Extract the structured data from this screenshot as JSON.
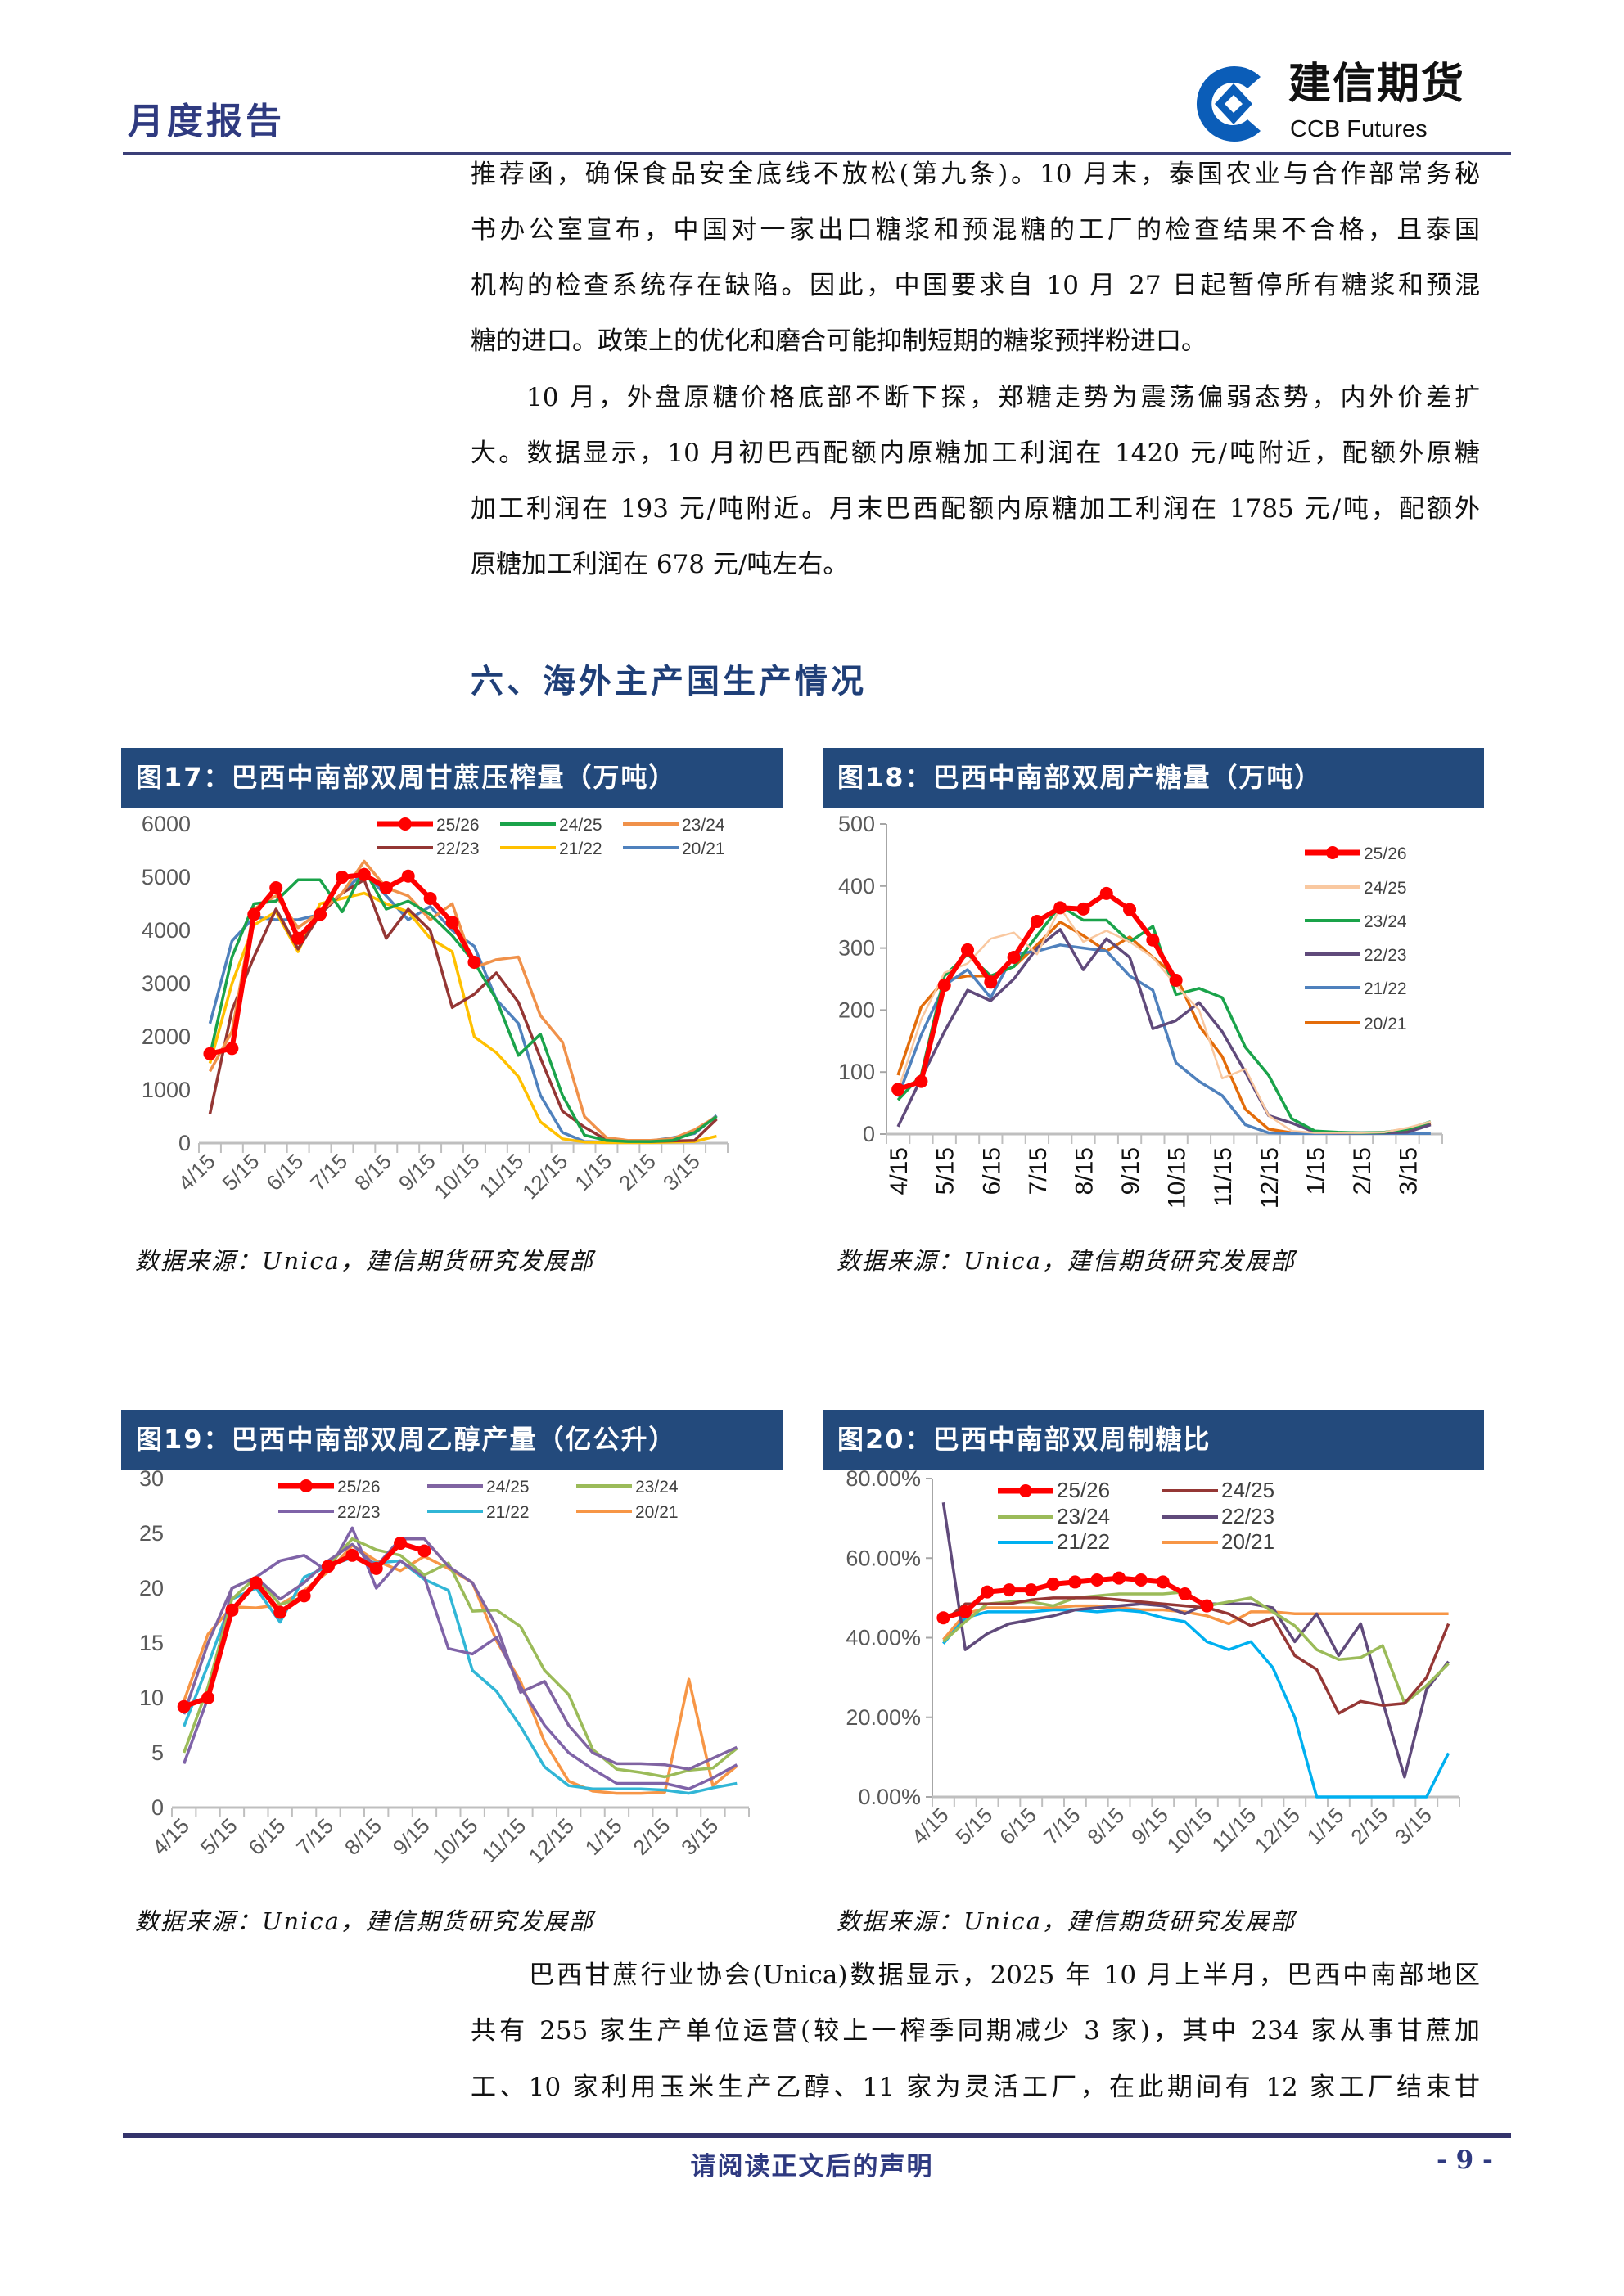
{
  "header": {
    "report_type": "月度报告",
    "logo_cn": "建信期货",
    "logo_en": "CCB Futures",
    "brand_color": "#0b5db8"
  },
  "body_top": {
    "lines": [
      "推荐函，确保食品安全底线不放松(第九条)。10 月末，泰国农业与合作部常务秘",
      "书办公室宣布，中国对一家出口糖浆和预混糖的工厂的检查结果不合格，且泰国",
      "机构的检查系统存在缺陷。因此，中国要求自 10 月 27 日起暂停所有糖浆和预混",
      "糖的进口。政策上的优化和磨合可能抑制短期的糖浆预拌粉进口。",
      "10 月，外盘原糖价格底部不断下探，郑糖走势为震荡偏弱态势，内外价差扩",
      "大。数据显示，10 月初巴西配额内原糖加工利润在 1420 元/吨附近，配额外原糖",
      "加工利润在 193 元/吨附近。月末巴西配额内原糖加工利润在 1785 元/吨，配额外",
      "原糖加工利润在 678 元/吨左右。"
    ]
  },
  "section_title": "六、海外主产国生产情况",
  "source_label": "数据来源：Unica，建信期货研究发展部",
  "chart_data": [
    {
      "type": "line",
      "title": "图17：巴西中南部双周甘蔗压榨量（万吨）",
      "ylim": [
        0,
        6000
      ],
      "y_tick_labels": [
        "0",
        "1000",
        "2000",
        "3000",
        "4000",
        "5000",
        "6000"
      ],
      "x_tick_labels": [
        "4/15",
        "5/15",
        "6/15",
        "7/15",
        "8/15",
        "9/15",
        "10/15",
        "11/15",
        "12/15",
        "1/15",
        "2/15",
        "3/15"
      ],
      "legend": "top",
      "series": [
        {
          "name": "25/26",
          "color": "#ff0000",
          "markers": true,
          "values": [
            1680,
            1780,
            4300,
            4800,
            3850,
            4300,
            5000,
            5050,
            4800,
            5020,
            4600,
            4150,
            3400
          ]
        },
        {
          "name": "24/25",
          "color": "#1aa34a",
          "values": [
            1650,
            3500,
            4500,
            4550,
            4950,
            4950,
            4350,
            5150,
            4400,
            4550,
            4300,
            3900,
            3400,
            2700,
            1650,
            2050,
            900,
            150,
            50,
            30,
            30,
            50,
            200,
            500
          ]
        },
        {
          "name": "23/24",
          "color": "#f0914a",
          "values": [
            1350,
            2100,
            4400,
            4650,
            4050,
            4350,
            4700,
            5300,
            4800,
            4650,
            4200,
            4500,
            3300,
            3450,
            3500,
            2400,
            1900,
            500,
            100,
            50,
            50,
            80,
            250,
            500
          ]
        },
        {
          "name": "22/23",
          "color": "#943634",
          "values": [
            550,
            2500,
            3500,
            4400,
            3650,
            4300,
            4700,
            4950,
            3850,
            4400,
            4000,
            2550,
            2800,
            3200,
            2650,
            1600,
            600,
            300,
            60,
            40,
            30,
            40,
            50,
            450
          ]
        },
        {
          "name": "21/22",
          "color": "#ffc000",
          "values": [
            1500,
            3000,
            4100,
            4350,
            3600,
            4500,
            4600,
            4700,
            4500,
            4350,
            3850,
            3600,
            2000,
            1700,
            1250,
            400,
            80,
            20,
            10,
            10,
            10,
            20,
            30,
            130
          ]
        },
        {
          "name": "20/21",
          "color": "#4f81bd",
          "values": [
            2250,
            3800,
            4250,
            4200,
            4200,
            4300,
            4700,
            5100,
            4650,
            4200,
            4450,
            4000,
            3700,
            2700,
            2250,
            900,
            200,
            30,
            20,
            20,
            40,
            100,
            180,
            520
          ]
        }
      ]
    },
    {
      "type": "line",
      "title": "图18：巴西中南部双周产糖量（万吨）",
      "ylim": [
        0,
        500
      ],
      "y_tick_labels": [
        "0",
        "100",
        "200",
        "300",
        "400",
        "500"
      ],
      "x_tick_labels": [
        "4/15",
        "5/15",
        "6/15",
        "7/15",
        "8/15",
        "9/15",
        "10/15",
        "11/15",
        "12/15",
        "1/15",
        "2/15",
        "3/15"
      ],
      "legend": "right",
      "series": [
        {
          "name": "25/26",
          "color": "#ff0000",
          "markers": true,
          "values": [
            72,
            85,
            240,
            297,
            245,
            285,
            343,
            365,
            363,
            388,
            362,
            313,
            248
          ]
        },
        {
          "name": "24/25",
          "color": "#f9c8a0",
          "values": [
            70,
            185,
            260,
            275,
            315,
            325,
            290,
            365,
            310,
            328,
            310,
            285,
            240,
            200,
            90,
            105,
            30,
            5,
            2,
            2,
            2,
            3,
            10,
            20
          ]
        },
        {
          "name": "23/24",
          "color": "#1aa34a",
          "values": [
            55,
            95,
            255,
            290,
            255,
            270,
            320,
            368,
            345,
            345,
            310,
            335,
            225,
            235,
            220,
            140,
            95,
            25,
            5,
            3,
            2,
            3,
            8,
            20
          ]
        },
        {
          "name": "22/23",
          "color": "#604a7b",
          "values": [
            12,
            90,
            165,
            232,
            215,
            250,
            300,
            330,
            265,
            315,
            285,
            170,
            183,
            212,
            165,
            100,
            30,
            18,
            3,
            2,
            2,
            2,
            3,
            15
          ]
        },
        {
          "name": "21/22",
          "color": "#4f81bd",
          "values": [
            60,
            160,
            240,
            265,
            220,
            290,
            295,
            305,
            300,
            295,
            255,
            232,
            115,
            85,
            62,
            15,
            2,
            1,
            1,
            1,
            1,
            1,
            1,
            1
          ]
        },
        {
          "name": "20/21",
          "color": "#e36c0a",
          "values": [
            95,
            205,
            248,
            255,
            255,
            270,
            305,
            342,
            320,
            295,
            318,
            285,
            255,
            175,
            125,
            40,
            8,
            2,
            1,
            1,
            1,
            2,
            5,
            17
          ]
        }
      ]
    },
    {
      "type": "line",
      "title": "图19：巴西中南部双周乙醇产量（亿公升）",
      "ylim": [
        0,
        30
      ],
      "y_tick_labels": [
        "0",
        "5",
        "10",
        "15",
        "20",
        "25",
        "30"
      ],
      "x_tick_labels": [
        "4/15",
        "5/15",
        "6/15",
        "7/15",
        "8/15",
        "9/15",
        "10/15",
        "11/15",
        "12/15",
        "1/15",
        "2/15",
        "3/15"
      ],
      "legend": "top",
      "series": [
        {
          "name": "25/26",
          "color": "#ff0000",
          "markers": true,
          "values": [
            9.2,
            10,
            18,
            20.5,
            17.8,
            19.3,
            22,
            23,
            21.8,
            24.1,
            23.4
          ]
        },
        {
          "name": "24/25",
          "color": "#8064a2",
          "values": [
            8.5,
            15,
            20,
            21,
            19,
            20.5,
            22.5,
            24,
            22,
            24.5,
            24.5,
            22,
            20.5,
            16.5,
            10.5,
            11.5,
            7.5,
            5,
            4,
            4,
            3.9,
            3.5,
            4.5,
            5.5
          ]
        },
        {
          "name": "23/24",
          "color": "#9bbb59",
          "values": [
            5,
            11,
            19,
            21,
            18.5,
            19.2,
            22,
            24.5,
            23.5,
            23,
            21.2,
            22.3,
            17.9,
            18,
            16.5,
            12.5,
            10.3,
            5.3,
            3.5,
            3.2,
            2.8,
            3.4,
            3.6,
            5.4
          ]
        },
        {
          "name": "22/23",
          "color": "#7f63a8",
          "values": [
            4,
            10,
            20,
            21,
            22.5,
            23,
            21.5,
            25.5,
            20,
            22.5,
            21,
            14.5,
            14,
            15.5,
            11,
            7.5,
            5,
            3.5,
            2.2,
            2.2,
            2.2,
            1.7,
            2.7,
            3.9
          ]
        },
        {
          "name": "21/22",
          "color": "#31b6d6",
          "values": [
            7.4,
            13,
            19,
            20,
            16.9,
            21,
            22,
            22.8,
            22.3,
            22.5,
            20.8,
            19.8,
            12.5,
            10.6,
            7.4,
            3.7,
            2,
            1.7,
            1.7,
            1.7,
            1.6,
            1.3,
            1.8,
            2.2
          ]
        },
        {
          "name": "20/21",
          "color": "#f79646",
          "values": [
            9.7,
            15.8,
            18.3,
            18.2,
            18.5,
            19.8,
            21.5,
            23.9,
            22.5,
            21.6,
            22.9,
            21.8,
            20.5,
            15.2,
            11.5,
            6,
            2.4,
            1.5,
            1.3,
            1.3,
            1.4,
            11.7,
            2,
            3.8
          ]
        }
      ]
    },
    {
      "type": "line",
      "title": "图20：巴西中南部双周制糖比",
      "ylim": [
        0,
        80
      ],
      "y_tick_labels": [
        "0.00%",
        "20.00%",
        "40.00%",
        "60.00%",
        "80.00%"
      ],
      "x_tick_labels": [
        "4/15",
        "5/15",
        "6/15",
        "7/15",
        "8/15",
        "9/15",
        "10/15",
        "11/15",
        "12/15",
        "1/15",
        "2/15",
        "3/15"
      ],
      "legend": "top",
      "series": [
        {
          "name": "25/26",
          "color": "#ff0000",
          "markers": true,
          "values": [
            45,
            46.5,
            51.5,
            52,
            52,
            53.5,
            54,
            54.5,
            55,
            54.5,
            54,
            51,
            48
          ]
        },
        {
          "name": "24/25",
          "color": "#953735",
          "values": [
            44,
            48.5,
            48.5,
            48.5,
            49.5,
            50,
            50,
            50,
            49.5,
            49,
            48.5,
            48,
            47.5,
            46,
            43,
            45,
            35.5,
            32,
            21,
            24,
            23,
            23.5,
            30,
            43.5
          ]
        },
        {
          "name": "23/24",
          "color": "#9bbb59",
          "values": [
            39,
            44,
            48.5,
            49,
            49,
            48,
            50,
            50.5,
            51,
            51,
            51,
            51.5,
            48,
            49,
            50,
            46.5,
            43,
            37,
            34.5,
            35,
            38,
            23.5,
            28,
            33.5
          ]
        },
        {
          "name": "22/23",
          "color": "#604a7b",
          "values": [
            74,
            37,
            41,
            43.5,
            44.5,
            45.5,
            47,
            47.5,
            48,
            48.5,
            48,
            46,
            48.5,
            48.5,
            48.5,
            47.5,
            39,
            46,
            35.5,
            43.5,
            24,
            5,
            27,
            34
          ]
        },
        {
          "name": "21/22",
          "color": "#00b0f0",
          "values": [
            38.5,
            45,
            46.5,
            46.5,
            46.5,
            47,
            47,
            46.5,
            47,
            46.5,
            45,
            44,
            39,
            37,
            39,
            32.5,
            20,
            0,
            0,
            0,
            0,
            0,
            0,
            11
          ]
        },
        {
          "name": "20/21",
          "color": "#f79646",
          "values": [
            39.5,
            46,
            47.5,
            47.5,
            47.5,
            47.5,
            48,
            48,
            47.5,
            47,
            47,
            46.5,
            45.5,
            43.5,
            46.5,
            46.5,
            46,
            46,
            46,
            46,
            46,
            46,
            46,
            46
          ]
        }
      ]
    }
  ],
  "body_bottom": {
    "lines": [
      "巴西甘蔗行业协会(Unica)数据显示，2025 年 10 月上半月，巴西中南部地区",
      "共有 255 家生产单位运营(较上一榨季同期减少 3 家)，其中 234 家从事甘蔗加",
      "工、10 家利用玉米生产乙醇、11 家为灵活工厂，在此期间有 12 家工厂结束甘"
    ]
  },
  "footer": {
    "note": "请阅读正文后的声明",
    "page": "- 9 -"
  }
}
